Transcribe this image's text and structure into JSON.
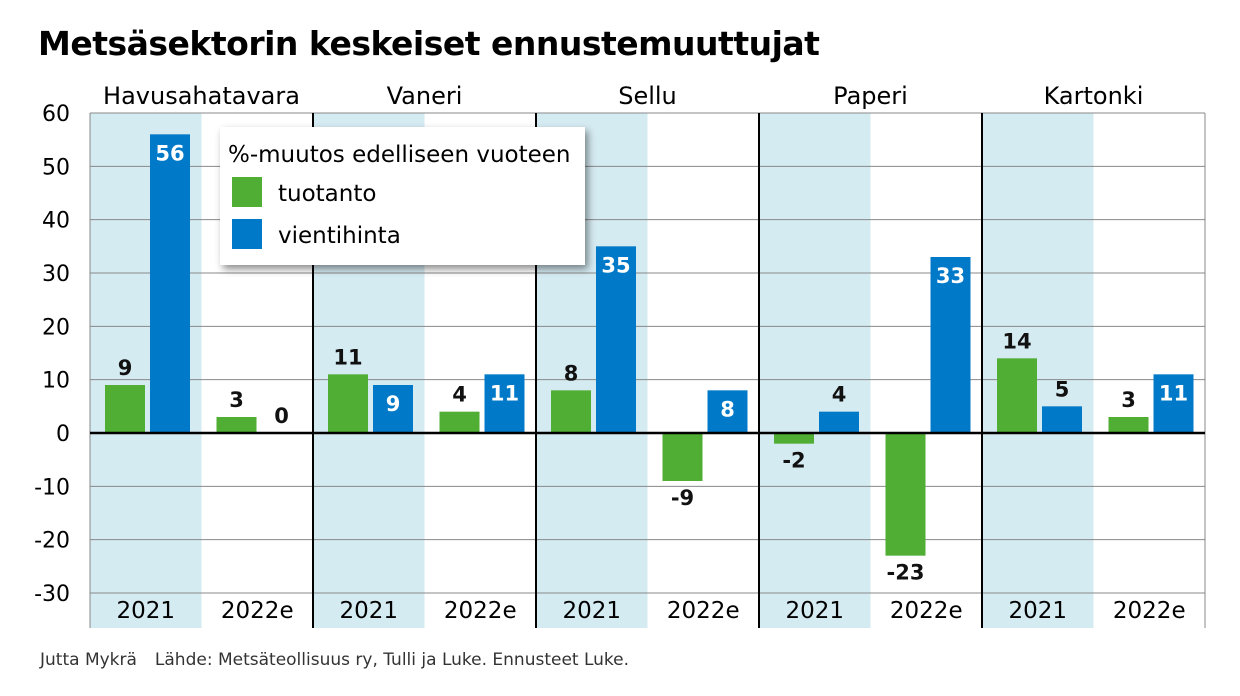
{
  "title": "Metsäsektorin keskeiset ennustemuuttujat",
  "footer": {
    "author": "Jutta Mykrä",
    "source": "Lähde: Metsäteollisuus ry, Tulli ja Luke. Ennusteet Luke."
  },
  "colors": {
    "tuotanto": "#4fae33",
    "vientihinta": "#0079c8",
    "shade": "#d5ebf2"
  },
  "chart_data": {
    "type": "bar",
    "title": "Metsäsektorin keskeiset ennustemuuttujat",
    "ylim": [
      -30,
      60
    ],
    "yticks": [
      "-30",
      "-20",
      "-10",
      "0",
      "10",
      "20",
      "30",
      "40",
      "50",
      "60"
    ],
    "legend": {
      "title": "%-muutos edelliseen vuoteen",
      "placement": "top-left",
      "entries": [
        "tuotanto",
        "vientihinta"
      ]
    },
    "groups": [
      {
        "name": "Havusahatavara",
        "periods": [
          {
            "year": "2021",
            "tuotanto": 9,
            "vientihinta": 56
          },
          {
            "year": "2022e",
            "tuotanto": 3,
            "vientihinta": 0
          }
        ]
      },
      {
        "name": "Vaneri",
        "periods": [
          {
            "year": "2021",
            "tuotanto": 11,
            "vientihinta": 9
          },
          {
            "year": "2022e",
            "tuotanto": 4,
            "vientihinta": 11
          }
        ]
      },
      {
        "name": "Sellu",
        "periods": [
          {
            "year": "2021",
            "tuotanto": 8,
            "vientihinta": 35
          },
          {
            "year": "2022e",
            "tuotanto": -9,
            "vientihinta": 8
          }
        ]
      },
      {
        "name": "Paperi",
        "periods": [
          {
            "year": "2021",
            "tuotanto": -2,
            "vientihinta": 4
          },
          {
            "year": "2022e",
            "tuotanto": -23,
            "vientihinta": 33
          }
        ]
      },
      {
        "name": "Kartonki",
        "periods": [
          {
            "year": "2021",
            "tuotanto": 14,
            "vientihinta": 5
          },
          {
            "year": "2022e",
            "tuotanto": 3,
            "vientihinta": 11
          }
        ]
      }
    ]
  }
}
